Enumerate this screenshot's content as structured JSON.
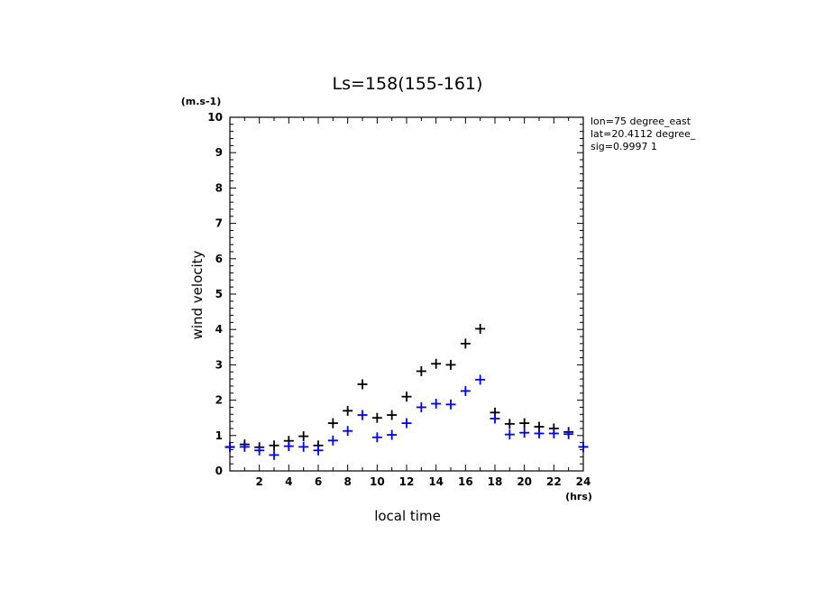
{
  "chart_data": {
    "type": "scatter",
    "title": "Ls=158(155-161)",
    "xlabel": "local time",
    "ylabel": "wind velocity",
    "x_unit": "(hrs)",
    "y_unit": "(m.s-1)",
    "xlim": [
      0,
      24
    ],
    "ylim": [
      0,
      10
    ],
    "x_ticks": [
      "2",
      "4",
      "6",
      "8",
      "10",
      "12",
      "14",
      "16",
      "18",
      "20",
      "22",
      "24"
    ],
    "y_ticks": [
      "0",
      "1",
      "2",
      "3",
      "4",
      "5",
      "6",
      "7",
      "8",
      "9",
      "10"
    ],
    "grid": false,
    "annotations": [
      "lon=75 degree_east",
      "lat=20.4112 degree_",
      "sig=0.9997 1"
    ],
    "series": [
      {
        "color": "#000000",
        "marker": "plus",
        "x": [
          0,
          1,
          2,
          3,
          4,
          5,
          6,
          7,
          8,
          9,
          10,
          11,
          12,
          13,
          14,
          15,
          16,
          17,
          18,
          19,
          20,
          21,
          22,
          23,
          24
        ],
        "y": [
          0.68,
          0.75,
          0.67,
          0.72,
          0.85,
          0.98,
          0.72,
          1.35,
          1.7,
          2.45,
          1.5,
          1.58,
          2.1,
          2.82,
          3.03,
          3.0,
          3.6,
          4.02,
          1.65,
          1.33,
          1.35,
          1.25,
          1.2,
          1.1,
          0.68
        ]
      },
      {
        "color": "#0000ff",
        "marker": "plus",
        "x": [
          0,
          1,
          2,
          3,
          4,
          5,
          6,
          7,
          8,
          9,
          10,
          11,
          12,
          13,
          14,
          15,
          16,
          17,
          18,
          19,
          20,
          21,
          22,
          23,
          24
        ],
        "y": [
          0.67,
          0.68,
          0.58,
          0.45,
          0.7,
          0.68,
          0.58,
          0.86,
          1.13,
          1.58,
          0.95,
          1.02,
          1.35,
          1.8,
          1.9,
          1.88,
          2.26,
          2.58,
          1.48,
          1.03,
          1.08,
          1.06,
          1.06,
          1.04,
          0.68
        ]
      }
    ]
  }
}
